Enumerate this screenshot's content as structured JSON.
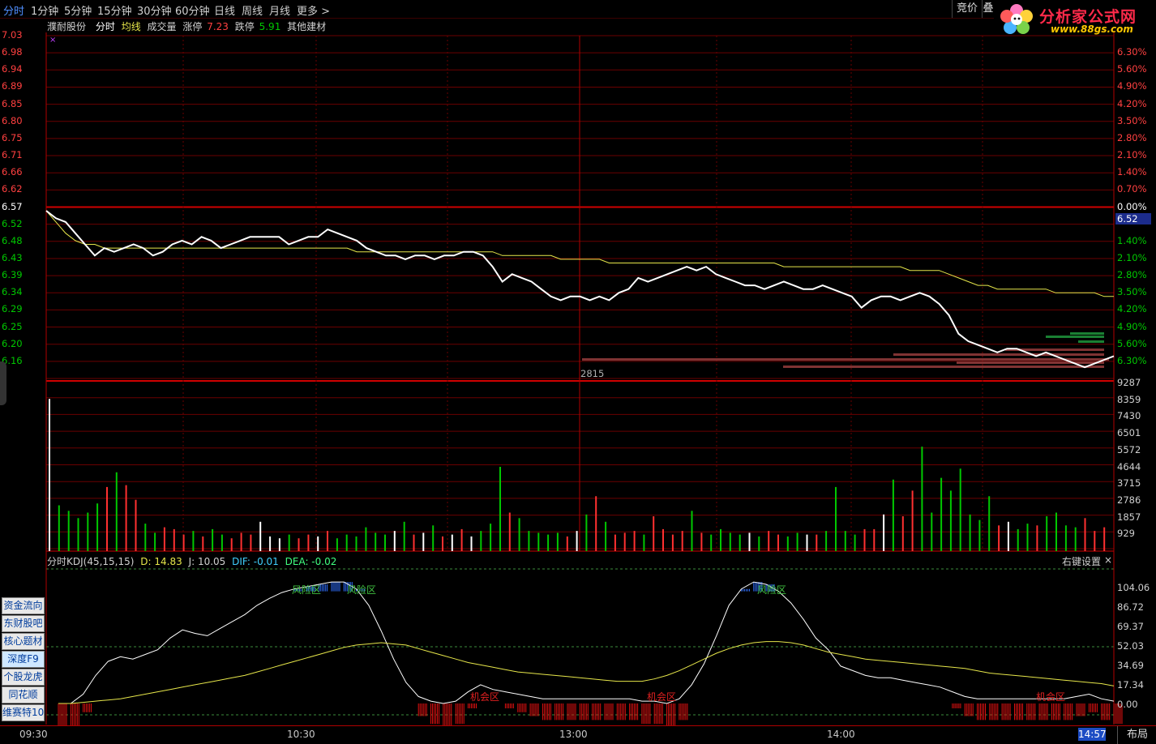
{
  "toolbar": {
    "tabs": [
      "分时",
      "1分钟",
      "5分钟",
      "15分钟",
      "30分钟",
      "60分钟",
      "日线",
      "周线",
      "月线",
      "更多 >"
    ],
    "auction_label": "竞价",
    "extra_label": "叠"
  },
  "logo": {
    "title": "分析家公式网",
    "url": "www.88gs.com"
  },
  "info": {
    "stock_name": "濮耐股份",
    "mode": "分时",
    "avg_line": "均线",
    "volume": "成交量",
    "limit_up_label": "涨停",
    "limit_up": "7.23",
    "limit_down_label": "跌停",
    "limit_down": "5.91",
    "sector": "其他建材"
  },
  "price_axis": {
    "prices": [
      "7.03",
      "6.98",
      "6.94",
      "6.89",
      "6.85",
      "6.80",
      "6.75",
      "6.71",
      "6.66",
      "6.62",
      "6.57",
      "6.52",
      "6.48",
      "6.43",
      "6.39",
      "6.34",
      "6.29",
      "6.25",
      "6.20",
      "6.16"
    ],
    "percents_up": [
      "6.30%",
      "5.60%",
      "4.90%",
      "4.20%",
      "3.50%",
      "2.80%",
      "2.10%",
      "1.40%",
      "0.70%",
      "0.00%"
    ],
    "percents_down": [
      "1.40%",
      "2.10%",
      "2.80%",
      "3.50%",
      "4.20%",
      "4.90%",
      "5.60%",
      "6.30%"
    ],
    "prev_close": 6.57,
    "current_price_tag": "6.52",
    "colors": {
      "up": "#ff4040",
      "down": "#00c800",
      "flat": "#ffffff"
    }
  },
  "volume_axis": {
    "labels": [
      "9287",
      "8359",
      "7430",
      "6501",
      "5572",
      "4644",
      "3715",
      "2786",
      "1857",
      "929"
    ],
    "order_marker": "2815"
  },
  "kdj": {
    "title": "分时KDJ(45,15,15)",
    "d": "D: 14.83",
    "j": "J: 10.05",
    "dif": "DIF: -0.01",
    "dea": "DEA: -0.02",
    "settings": "右键设置",
    "close": "×",
    "axis": [
      "104.06",
      "86.72",
      "69.37",
      "52.03",
      "34.69",
      "17.34",
      "0.00"
    ],
    "risk_label": "风险区",
    "chance_label": "机会区"
  },
  "side_buttons": [
    "资金流向",
    "东财股吧",
    "核心题材",
    "深度F9",
    "个股龙虎",
    "同花顺",
    "维赛特10"
  ],
  "time_axis": {
    "labels": [
      "09:30",
      "10:30",
      "13:00",
      "14:00"
    ],
    "cursor_time": "14:57",
    "layout_label": "布局"
  },
  "chart_data": [
    {
      "type": "line",
      "title": "",
      "x_range": [
        "09:30",
        "15:00"
      ],
      "ylim": [
        6.11,
        7.03
      ],
      "series": [
        {
          "name": "分时",
          "color": "#ffffff",
          "values": [
            6.56,
            6.54,
            6.53,
            6.5,
            6.47,
            6.44,
            6.46,
            6.45,
            6.46,
            6.47,
            6.46,
            6.44,
            6.45,
            6.47,
            6.48,
            6.47,
            6.49,
            6.48,
            6.46,
            6.47,
            6.48,
            6.49,
            6.49,
            6.49,
            6.49,
            6.47,
            6.48,
            6.49,
            6.49,
            6.51,
            6.5,
            6.49,
            6.48,
            6.46,
            6.45,
            6.44,
            6.44,
            6.43,
            6.44,
            6.44,
            6.43,
            6.44,
            6.44,
            6.45,
            6.45,
            6.44,
            6.41,
            6.37,
            6.39,
            6.38,
            6.37,
            6.35,
            6.33,
            6.32,
            6.33,
            6.33,
            6.32,
            6.33,
            6.32,
            6.34,
            6.35,
            6.38,
            6.37,
            6.38,
            6.39,
            6.4,
            6.41,
            6.4,
            6.41,
            6.39,
            6.38,
            6.37,
            6.36,
            6.36,
            6.35,
            6.36,
            6.37,
            6.36,
            6.35,
            6.35,
            6.36,
            6.35,
            6.34,
            6.33,
            6.3,
            6.32,
            6.33,
            6.33,
            6.32,
            6.33,
            6.34,
            6.33,
            6.31,
            6.28,
            6.23,
            6.21,
            6.2,
            6.19,
            6.18,
            6.19,
            6.19,
            6.18,
            6.17,
            6.18,
            6.17,
            6.16,
            6.15,
            6.14,
            6.15,
            6.16,
            6.17
          ]
        },
        {
          "name": "均线",
          "color": "#e6e64a",
          "values": [
            6.56,
            6.53,
            6.5,
            6.48,
            6.47,
            6.47,
            6.46,
            6.46,
            6.46,
            6.46,
            6.46,
            6.46,
            6.46,
            6.46,
            6.46,
            6.46,
            6.46,
            6.46,
            6.46,
            6.46,
            6.46,
            6.46,
            6.46,
            6.46,
            6.46,
            6.46,
            6.46,
            6.46,
            6.46,
            6.46,
            6.46,
            6.46,
            6.45,
            6.45,
            6.45,
            6.45,
            6.45,
            6.45,
            6.45,
            6.45,
            6.45,
            6.45,
            6.45,
            6.45,
            6.45,
            6.45,
            6.45,
            6.44,
            6.44,
            6.44,
            6.44,
            6.44,
            6.44,
            6.43,
            6.43,
            6.43,
            6.43,
            6.43,
            6.42,
            6.42,
            6.42,
            6.42,
            6.42,
            6.42,
            6.42,
            6.42,
            6.42,
            6.42,
            6.42,
            6.42,
            6.42,
            6.42,
            6.42,
            6.42,
            6.42,
            6.42,
            6.41,
            6.41,
            6.41,
            6.41,
            6.41,
            6.41,
            6.41,
            6.41,
            6.41,
            6.41,
            6.41,
            6.41,
            6.41,
            6.4,
            6.4,
            6.4,
            6.4,
            6.39,
            6.38,
            6.37,
            6.36,
            6.36,
            6.35,
            6.35,
            6.35,
            6.35,
            6.35,
            6.35,
            6.34,
            6.34,
            6.34,
            6.34,
            6.34,
            6.33,
            6.33
          ]
        }
      ]
    },
    {
      "type": "bar",
      "title": "",
      "ylim": [
        0,
        9287
      ],
      "series": [
        {
          "name": "成交量",
          "values": [
            8300,
            2500,
            2200,
            1800,
            2100,
            2600,
            3500,
            4300,
            3600,
            2800,
            1500,
            1000,
            1300,
            1200,
            900,
            1100,
            800,
            1200,
            900,
            700,
            1000,
            900,
            1600,
            800,
            700,
            900,
            700,
            900,
            800,
            1100,
            700,
            900,
            800,
            1300,
            1000,
            900,
            1100,
            1600,
            900,
            1000,
            1400,
            800,
            900,
            1200,
            800,
            1100,
            1500,
            4600,
            2100,
            1800,
            1100,
            1000,
            900,
            1000,
            800,
            1100,
            2000,
            3000,
            1600,
            900,
            1000,
            1100,
            900,
            1900,
            1200,
            900,
            1100,
            2200,
            1000,
            900,
            1200,
            1000,
            900,
            1000,
            800,
            1100,
            900,
            800,
            1000,
            900,
            900,
            1100,
            3500,
            1100,
            900,
            1200,
            1200,
            2000,
            3900,
            1900,
            3300,
            5700,
            2100,
            4000,
            3300,
            4500,
            2000,
            1700,
            3000,
            1400,
            1600,
            1200,
            1500,
            1400,
            1900,
            2100,
            1400,
            1300,
            1800,
            1100,
            1300
          ]
        }
      ]
    },
    {
      "type": "line",
      "title": "",
      "ylim": [
        0,
        110
      ],
      "series": [
        {
          "name": "K",
          "values": [
            0,
            0,
            8,
            24,
            36,
            40,
            38,
            42,
            46,
            56,
            63,
            60,
            58,
            64,
            70,
            76,
            84,
            90,
            95,
            98,
            100,
            102,
            104,
            104,
            98,
            84,
            62,
            38,
            18,
            6,
            2,
            0,
            2,
            10,
            16,
            12,
            10,
            8,
            6,
            4,
            4,
            4,
            4,
            4,
            4,
            4,
            4,
            2,
            2,
            0,
            4,
            16,
            34,
            58,
            84,
            98,
            104,
            102,
            96,
            86,
            72,
            56,
            46,
            32,
            28,
            24,
            22,
            22,
            20,
            18,
            16,
            14,
            10,
            6,
            4,
            4,
            4,
            4,
            4,
            4,
            4,
            4,
            6,
            8,
            4,
            2
          ]
        },
        {
          "name": "D",
          "values": [
            0,
            0,
            1,
            2,
            3,
            4,
            6,
            8,
            10,
            12,
            14,
            16,
            18,
            20,
            22,
            24,
            27,
            30,
            33,
            36,
            39,
            42,
            45,
            48,
            50,
            51,
            52,
            51,
            50,
            47,
            44,
            41,
            38,
            35,
            33,
            31,
            29,
            27,
            26,
            25,
            24,
            23,
            22,
            21,
            20,
            19,
            19,
            19,
            21,
            24,
            28,
            33,
            38,
            43,
            47,
            50,
            52,
            53,
            53,
            52,
            50,
            47,
            44,
            42,
            40,
            38,
            37,
            36,
            35,
            34,
            33,
            32,
            31,
            30,
            28,
            26,
            25,
            24,
            23,
            22,
            21,
            20,
            19,
            18,
            17,
            15
          ]
        }
      ]
    }
  ]
}
